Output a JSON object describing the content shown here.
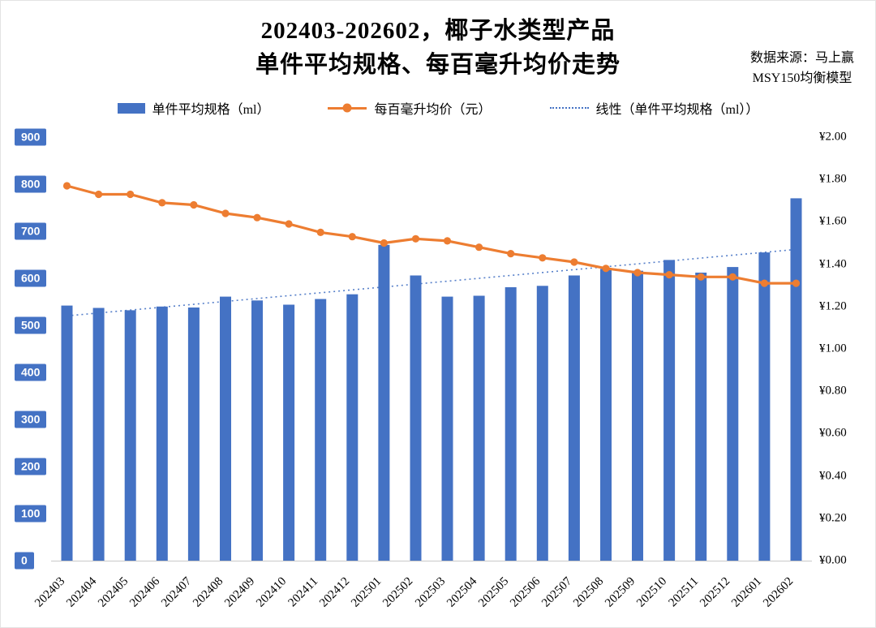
{
  "title": {
    "line1": "202403-202602，椰子水类型产品",
    "line2": "单件平均规格、每百毫升均价走势"
  },
  "source": {
    "line1": "数据来源：马上赢",
    "line2": "MSY150均衡模型"
  },
  "legend": [
    {
      "label": "单件平均规格（ml）",
      "type": "bar",
      "color": "#4472C4"
    },
    {
      "label": "每百毫升均价（元）",
      "type": "line",
      "color": "#ED7D31"
    },
    {
      "label": "线性（单件平均规格（ml））",
      "type": "dotted-trendline",
      "color": "#4472C4"
    }
  ],
  "chart_data": {
    "type": "bar",
    "subtype": "combo-bar-line-with-trendline",
    "title": "202403-202602，椰子水类型产品 单件平均规格、每百毫升均价走势",
    "categories": [
      "202403",
      "202404",
      "202405",
      "202406",
      "202407",
      "202408",
      "202409",
      "202410",
      "202411",
      "202412",
      "202501",
      "202502",
      "202503",
      "202504",
      "202505",
      "202506",
      "202507",
      "202508",
      "202509",
      "202510",
      "202511",
      "202512",
      "202601",
      "202602"
    ],
    "series": [
      {
        "name": "单件平均规格（ml）",
        "type": "bar",
        "axis": "left",
        "color": "#4472C4",
        "values": [
          542,
          537,
          532,
          540,
          538,
          561,
          553,
          544,
          556,
          566,
          671,
          606,
          561,
          563,
          581,
          584,
          606,
          620,
          616,
          639,
          612,
          624,
          655,
          770
        ]
      },
      {
        "name": "每百毫升均价（元）",
        "type": "line",
        "axis": "right",
        "color": "#ED7D31",
        "values": [
          1.77,
          1.73,
          1.73,
          1.69,
          1.68,
          1.64,
          1.62,
          1.59,
          1.55,
          1.53,
          1.5,
          1.52,
          1.51,
          1.48,
          1.45,
          1.43,
          1.41,
          1.38,
          1.36,
          1.35,
          1.34,
          1.34,
          1.31,
          1.31
        ]
      },
      {
        "name": "线性（单件平均规格（ml））",
        "type": "trendline",
        "of_series": 0,
        "axis": "left",
        "color": "#4472C4",
        "style": "dotted"
      }
    ],
    "left_axis": {
      "min": 0,
      "max": 900,
      "step": 100,
      "tick_labels": [
        "900",
        "800",
        "700",
        "600",
        "500",
        "400",
        "300",
        "200",
        "100",
        "0"
      ]
    },
    "right_axis": {
      "min": 0,
      "max": 2.0,
      "step": 0.2,
      "tick_labels": [
        "¥2.00",
        "¥1.80",
        "¥1.60",
        "¥1.40",
        "¥1.20",
        "¥1.00",
        "¥0.80",
        "¥0.60",
        "¥0.40",
        "¥0.20",
        "¥0.00"
      ]
    },
    "grid": false,
    "legend_position": "top"
  }
}
